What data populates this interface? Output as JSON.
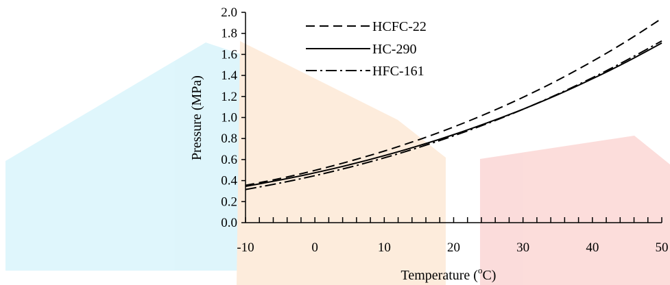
{
  "chart_data": {
    "type": "line",
    "title": "",
    "xlabel": "Temperature (",
    "xlabel_sup": "o",
    "xlabel_unit": "C)",
    "ylabel": "Pressure (MPa)",
    "xlim": [
      -10,
      50
    ],
    "ylim": [
      0,
      2.0
    ],
    "x_ticks": [
      "-10",
      "0",
      "10",
      "20",
      "30",
      "40",
      "50"
    ],
    "x_tick_values": [
      -10,
      0,
      10,
      20,
      30,
      40,
      50
    ],
    "y_ticks": [
      "0.0",
      "0.2",
      "0.4",
      "0.6",
      "0.8",
      "1.0",
      "1.2",
      "1.4",
      "1.6",
      "1.8",
      "2.0"
    ],
    "y_tick_values": [
      0,
      0.2,
      0.4,
      0.6,
      0.8,
      1.0,
      1.2,
      1.4,
      1.6,
      1.8,
      2.0
    ],
    "grid": false,
    "legend_position": "top-left",
    "x": [
      -10,
      -5,
      0,
      5,
      10,
      15,
      20,
      25,
      30,
      35,
      40,
      45,
      50
    ],
    "series": [
      {
        "name": "HCFC-22",
        "dash": "dashed",
        "values": [
          0.355,
          0.42,
          0.497,
          0.584,
          0.681,
          0.789,
          0.91,
          1.044,
          1.192,
          1.355,
          1.534,
          1.729,
          1.942
        ]
      },
      {
        "name": "HC-290",
        "dash": "solid",
        "values": [
          0.345,
          0.406,
          0.474,
          0.551,
          0.637,
          0.732,
          0.837,
          0.953,
          1.079,
          1.217,
          1.368,
          1.531,
          1.708
        ]
      },
      {
        "name": "HFC-161",
        "dash": "dash-dot",
        "values": [
          0.315,
          0.377,
          0.447,
          0.527,
          0.616,
          0.716,
          0.826,
          0.946,
          1.078,
          1.222,
          1.378,
          1.547,
          1.728
        ]
      }
    ],
    "colors": {
      "line": "#000000",
      "axis": "#000000"
    }
  },
  "watermark": {
    "colors": {
      "blue": "#d9f4fb",
      "orange": "#fde9d6",
      "red": "#fbd7d5"
    }
  }
}
